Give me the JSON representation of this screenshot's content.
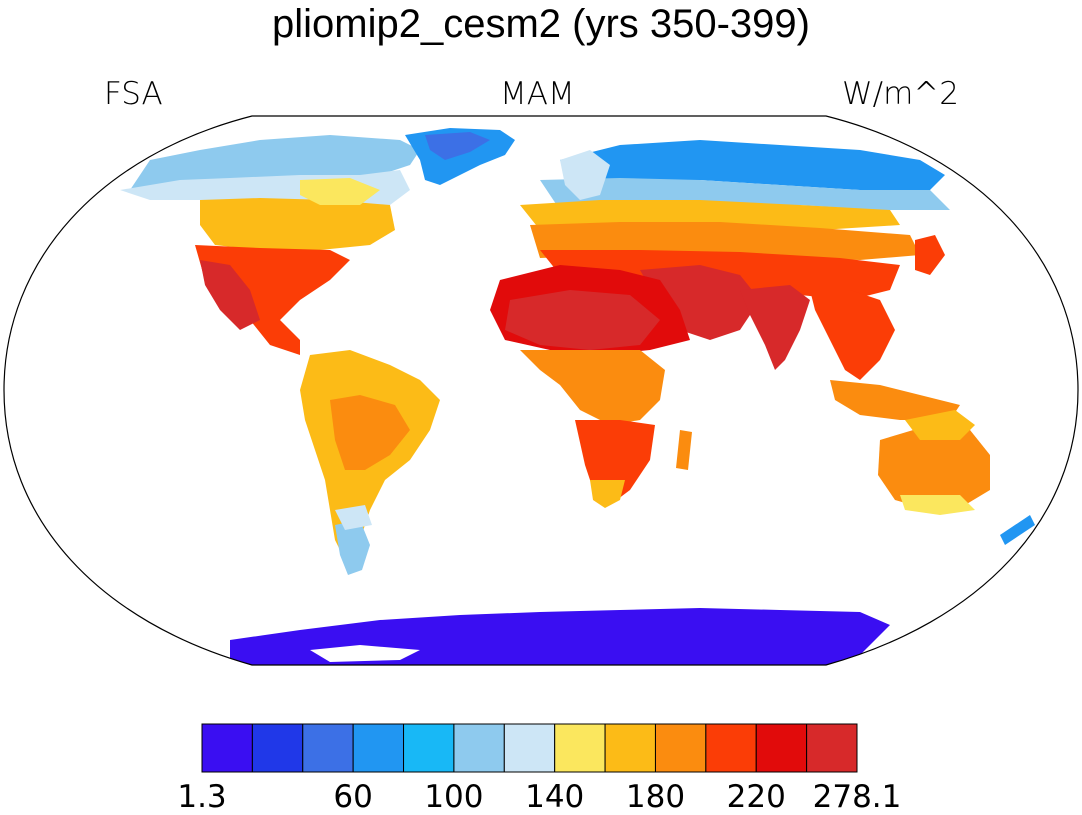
{
  "map": {
    "title": "pliomip2_cesm2 (yrs 350-399)",
    "left_label": "FSA",
    "center_label": "MAM",
    "right_label": "W/m^2",
    "projection": "Robinson",
    "missing_color": "#ffffff"
  },
  "colorbar": {
    "colors": [
      "#3a0ef2",
      "#2038e8",
      "#3c70e6",
      "#2196f2",
      "#18b8f6",
      "#8ecaee",
      "#cde6f6",
      "#fbe75e",
      "#fcbb17",
      "#fb8c0f",
      "#fb3d06",
      "#e10b0b",
      "#d7292a"
    ],
    "tick_labels": [
      "1.3",
      "60",
      "100",
      "140",
      "180",
      "220",
      "278.1"
    ]
  }
}
